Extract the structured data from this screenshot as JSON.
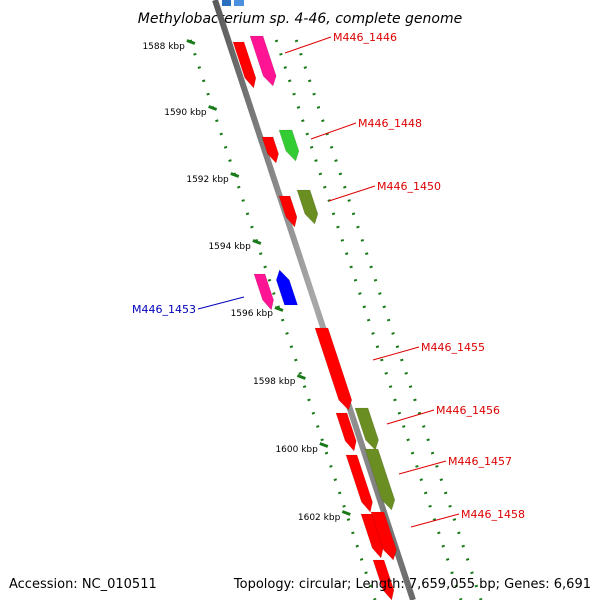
{
  "title": "Methylobacterium sp. 4-46, complete genome",
  "footer": {
    "accession": "Accession: NC_010511",
    "info": "Topology: circular; Length: 7,659,055 bp; Genes: 6,691"
  },
  "colors": {
    "backbone": "#888888",
    "track": "#1a7a1a",
    "forward_label": "#dd0000",
    "reverse_label": "#0000bb"
  },
  "ticks": [
    "1588 kbp",
    "1590 kbp",
    "1592 kbp",
    "1594 kbp",
    "1596 kbp",
    "1598 kbp",
    "1600 kbp",
    "1602 kbp"
  ],
  "genes": [
    {
      "label": "M446_1446",
      "strand": "forward",
      "color": "#ff1493"
    },
    {
      "label": "M446_1448",
      "strand": "forward",
      "color": "#33cc33"
    },
    {
      "label": "M446_1450",
      "strand": "forward",
      "color": "#6b8e23"
    },
    {
      "label": "M446_1453",
      "strand": "reverse",
      "color": "#0000ff"
    },
    {
      "label": "M446_1455",
      "strand": "forward",
      "color": "#ff0000"
    },
    {
      "label": "M446_1456",
      "strand": "forward",
      "color": "#6b8e23"
    },
    {
      "label": "M446_1457",
      "strand": "forward",
      "color": "#6b8e23"
    },
    {
      "label": "M446_1458",
      "strand": "forward",
      "color": "#ff0000"
    }
  ]
}
